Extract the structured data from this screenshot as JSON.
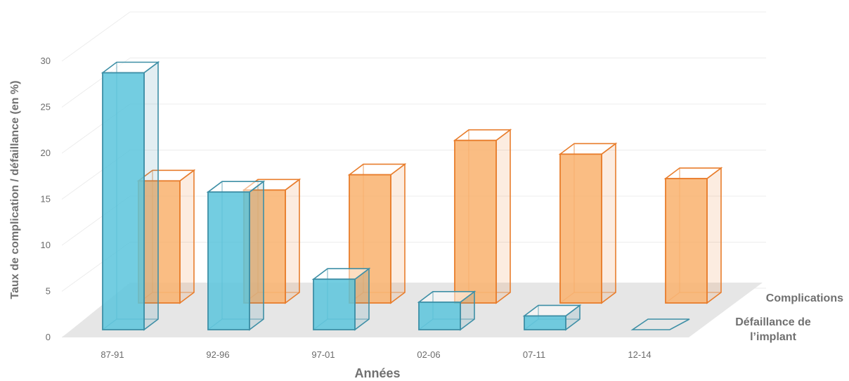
{
  "chart_data": {
    "type": "bar",
    "variant": "3d-clustered",
    "categories": [
      "87-91",
      "92-96",
      "97-01",
      "02-06",
      "07-11",
      "12-14"
    ],
    "series": [
      {
        "name": "Défaillance de l’implant",
        "color": "#5bc4dc",
        "edge": "#3e8fa6",
        "values": [
          28,
          15,
          5.5,
          3,
          1.5,
          0
        ]
      },
      {
        "name": "Complications",
        "color": "#f9b26d",
        "edge": "#e87d2c",
        "values": [
          16,
          14.8,
          16.8,
          21.3,
          19.5,
          16.3
        ]
      }
    ],
    "xlabel": "Années",
    "ylabel": "Taux de complication / défaillance (en %)",
    "yticks": [
      "0",
      "5",
      "10",
      "15",
      "20",
      "25",
      "30"
    ],
    "ylim": [
      0,
      30
    ],
    "grid": true
  }
}
